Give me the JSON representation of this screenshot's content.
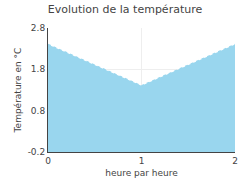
{
  "chart_data": {
    "type": "area",
    "title": "Evolution de la température",
    "xlabel": "heure par heure",
    "ylabel": "Température en °C",
    "x": [
      0,
      1,
      2
    ],
    "values": [
      2.4,
      1.4,
      2.4
    ],
    "color": "#99d6ee",
    "line_style": "dotted",
    "xlim": [
      0,
      2
    ],
    "xticks": [
      0,
      1,
      2
    ],
    "ylim": [
      -0.2,
      2.8
    ],
    "yticks": [
      -0.2,
      0.8,
      1.8,
      2.8
    ],
    "grid": true
  }
}
